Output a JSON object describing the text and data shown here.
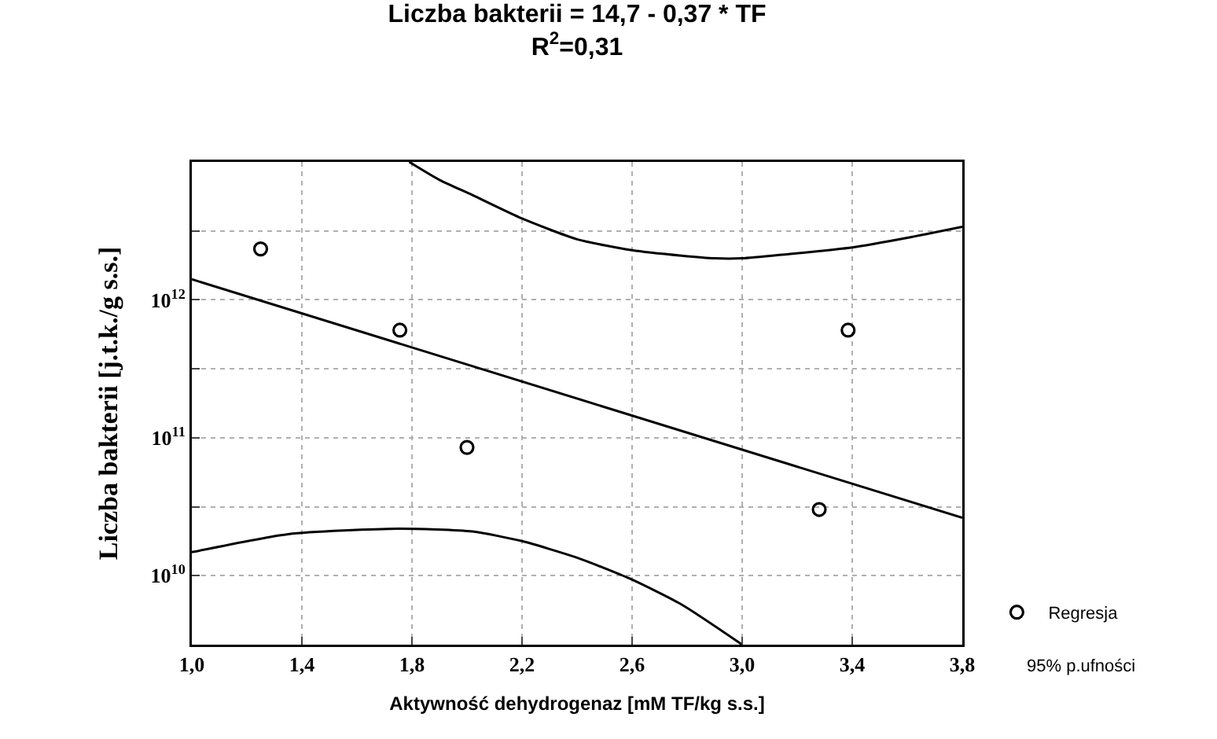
{
  "chart_data": {
    "type": "scatter",
    "title": "Liczba bakterii = 14,7 - 0,37 * TF",
    "subtitle": "R$^{2}$=0,31",
    "xlabel": "Aktywność dehydrogenaz [mM TF/kg s.s.]",
    "ylabel": "Liczba bakterii [j.t.k./g s.s.]",
    "log": "y",
    "grid": true,
    "legend": "bottom right",
    "xlim": [
      1.0,
      3.8
    ],
    "xticks": [
      {
        "value": 1.0,
        "label": "1,0"
      },
      {
        "value": 1.4,
        "label": "1,4"
      },
      {
        "value": 1.8,
        "label": "1,8"
      },
      {
        "value": 2.2,
        "label": "2,2"
      },
      {
        "value": 2.6,
        "label": "2,6"
      },
      {
        "value": 3.0,
        "label": "3,0"
      },
      {
        "value": 3.4,
        "label": "3,4"
      },
      {
        "value": 3.8,
        "label": "3,8"
      }
    ],
    "ylim": [
      3160000000.0,
      10000000000000.0
    ],
    "yticks": [
      {
        "value": 10000000000.0,
        "label": "10$^{10}$"
      },
      {
        "value": 31600000000.0,
        "label": null
      },
      {
        "value": 100000000000.0,
        "label": "10$^{11}$"
      },
      {
        "value": 316000000000.0,
        "label": null
      },
      {
        "value": 1000000000000.0,
        "label": "10$^{12}$"
      },
      {
        "value": 3160000000000.0,
        "label": null
      }
    ],
    "annotations": [
      "95% p.ufności"
    ],
    "series": [
      {
        "name": "Regresja",
        "marker": "circle",
        "color": "#000000",
        "x": [
          1.25,
          1.756,
          2.0,
          3.28,
          3.385
        ],
        "values": [
          2340000000000.0,
          603000000000.0,
          85100000000.0,
          30200000000.0,
          603000000000.0
        ]
      },
      {
        "type": "line",
        "color": "#000000",
        "line_style": "solid",
        "x": [
          1.0,
          3.8
        ],
        "values": [
          1410000000000.0,
          26300000000.0
        ]
      },
      {
        "type": "line",
        "color": "#000000",
        "line_style": "solid",
        "x": [
          1.79,
          1.9,
          2.02,
          2.2,
          2.4,
          2.6,
          2.78,
          2.9,
          3.0,
          3.16,
          3.4,
          3.6,
          3.8
        ],
        "values": [
          10000000000000.0,
          7410000000000.0,
          5750000000000.0,
          3890000000000.0,
          2750000000000.0,
          2290000000000.0,
          2090000000000.0,
          2000000000000.0,
          2000000000000.0,
          2140000000000.0,
          2400000000000.0,
          2820000000000.0,
          3390000000000.0
        ]
      },
      {
        "type": "line",
        "color": "#000000",
        "line_style": "solid",
        "x": [
          1.0,
          1.35,
          1.75,
          2.02,
          2.2,
          2.4,
          2.59,
          2.78,
          3.0
        ],
        "values": [
          14800000000.0,
          20000000000.0,
          21900000000.0,
          20900000000.0,
          17800000000.0,
          13500000000.0,
          9550000000.0,
          6170000000.0,
          3160000000.0
        ]
      }
    ]
  }
}
